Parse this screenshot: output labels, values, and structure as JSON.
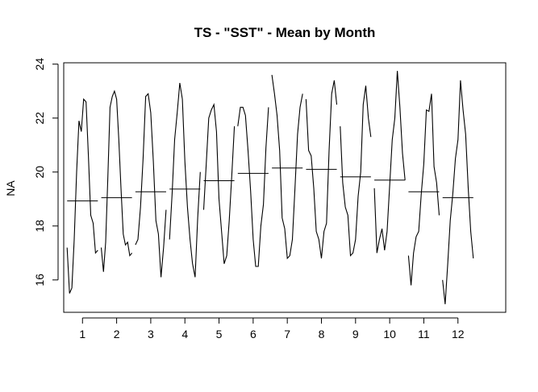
{
  "chart_data": {
    "type": "line",
    "title": "TS - \"SST\" - Mean by Month",
    "xlabel": "",
    "ylabel": "NA",
    "xlim": [
      0.45,
      13.4
    ],
    "ylim": [
      14.8,
      24.05
    ],
    "x_ticks": [
      1,
      2,
      3,
      4,
      5,
      6,
      7,
      8,
      9,
      10,
      11,
      12
    ],
    "y_ticks": [
      16,
      18,
      20,
      22,
      24
    ],
    "grid": false,
    "legend": "none",
    "line_color": "#000000",
    "series": [
      {
        "month": 1,
        "mean": 18.93,
        "values": [
          17.2,
          15.5,
          15.7,
          17.5,
          20.0,
          21.9,
          21.5,
          22.7,
          22.6,
          20.6,
          18.4,
          18.1,
          17.0,
          17.1
        ]
      },
      {
        "month": 2,
        "mean": 19.05,
        "values": [
          17.2,
          16.3,
          17.4,
          19.8,
          22.4,
          22.8,
          23.0,
          22.7,
          21.2,
          19.4,
          17.7,
          17.3,
          17.4,
          16.9,
          17.0
        ]
      },
      {
        "month": 3,
        "mean": 19.27,
        "values": [
          17.3,
          17.5,
          18.7,
          20.5,
          22.8,
          22.9,
          22.2,
          20.4,
          18.2,
          17.7,
          16.1,
          17.2,
          18.6
        ]
      },
      {
        "month": 4,
        "mean": 19.37,
        "values": [
          17.5,
          19.2,
          21.2,
          22.2,
          23.3,
          22.7,
          20.4,
          18.7,
          17.5,
          16.6,
          16.1,
          18.3,
          20.0
        ]
      },
      {
        "month": 5,
        "mean": 19.68,
        "values": [
          18.6,
          20.3,
          22.0,
          22.3,
          22.5,
          21.5,
          19.0,
          17.8,
          16.6,
          16.9,
          18.2,
          19.9,
          21.7
        ]
      },
      {
        "month": 6,
        "mean": 19.95,
        "values": [
          21.7,
          22.4,
          22.4,
          22.1,
          20.8,
          19.3,
          17.5,
          16.5,
          16.5,
          18.0,
          18.8,
          20.9,
          22.4
        ]
      },
      {
        "month": 7,
        "mean": 20.15,
        "values": [
          23.6,
          22.9,
          22.1,
          20.8,
          18.3,
          17.9,
          16.8,
          16.9,
          17.5,
          19.4,
          21.4,
          22.4,
          22.9
        ]
      },
      {
        "month": 8,
        "mean": 20.1,
        "values": [
          22.7,
          20.8,
          20.6,
          19.4,
          17.8,
          17.5,
          16.8,
          17.8,
          18.1,
          20.8,
          22.9,
          23.4,
          22.5
        ]
      },
      {
        "month": 9,
        "mean": 19.82,
        "values": [
          21.7,
          19.6,
          18.7,
          18.4,
          16.9,
          17.0,
          17.5,
          19.1,
          20.0,
          22.5,
          23.2,
          22.0,
          21.3
        ]
      },
      {
        "month": 10,
        "mean": 19.7,
        "values": [
          19.4,
          17.0,
          17.5,
          17.9,
          17.1,
          17.8,
          19.5,
          21.2,
          22.0,
          23.75,
          22.4,
          20.7,
          19.7
        ]
      },
      {
        "month": 11,
        "mean": 19.27,
        "values": [
          16.9,
          15.8,
          17.0,
          17.6,
          17.8,
          19.2,
          20.3,
          22.3,
          22.25,
          22.9,
          20.2,
          19.6,
          18.4
        ]
      },
      {
        "month": 12,
        "mean": 19.05,
        "values": [
          16.0,
          15.1,
          16.6,
          18.2,
          19.2,
          20.5,
          21.2,
          23.4,
          22.3,
          21.4,
          19.4,
          17.8,
          16.8
        ]
      }
    ]
  }
}
